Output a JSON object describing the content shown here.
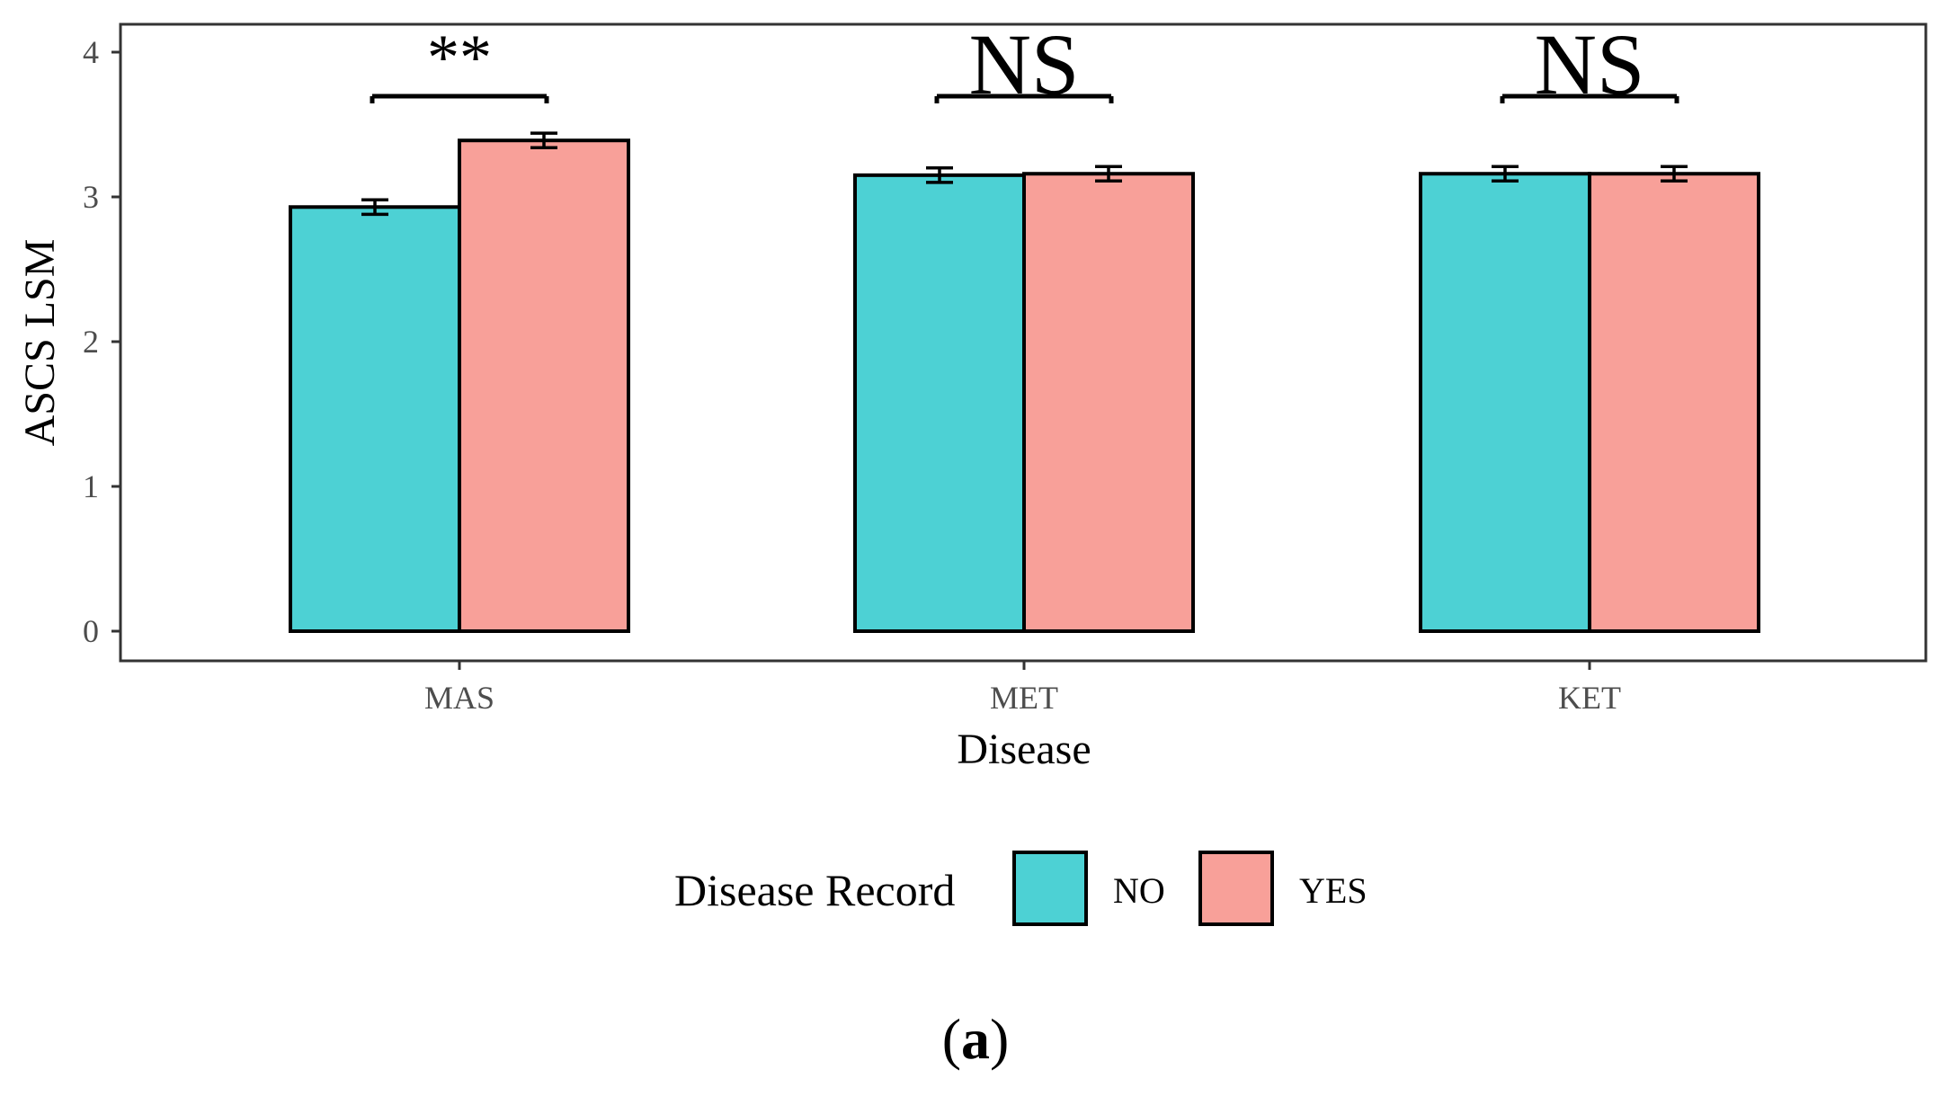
{
  "chart_data": {
    "type": "bar",
    "title": "",
    "xlabel": "Disease",
    "ylabel": "ASCS LSM",
    "ylim": [
      0,
      4.2
    ],
    "yticks": [
      0,
      1,
      2,
      3,
      4
    ],
    "categories": [
      "MAS",
      "MET",
      "KET"
    ],
    "series": [
      {
        "name": "NO",
        "color": "#4DD1D4",
        "values": [
          2.93,
          3.15,
          3.16
        ],
        "errors": [
          0.05,
          0.05,
          0.05
        ]
      },
      {
        "name": "YES",
        "color": "#F8A099",
        "values": [
          3.39,
          3.16,
          3.16
        ],
        "errors": [
          0.05,
          0.05,
          0.05
        ]
      }
    ],
    "significance": [
      "**",
      "NS",
      "NS"
    ],
    "legend": {
      "title": "Disease Record",
      "position": "bottom"
    },
    "grid": false
  },
  "caption": {
    "open": "(",
    "letter": "a",
    "close": ")"
  }
}
